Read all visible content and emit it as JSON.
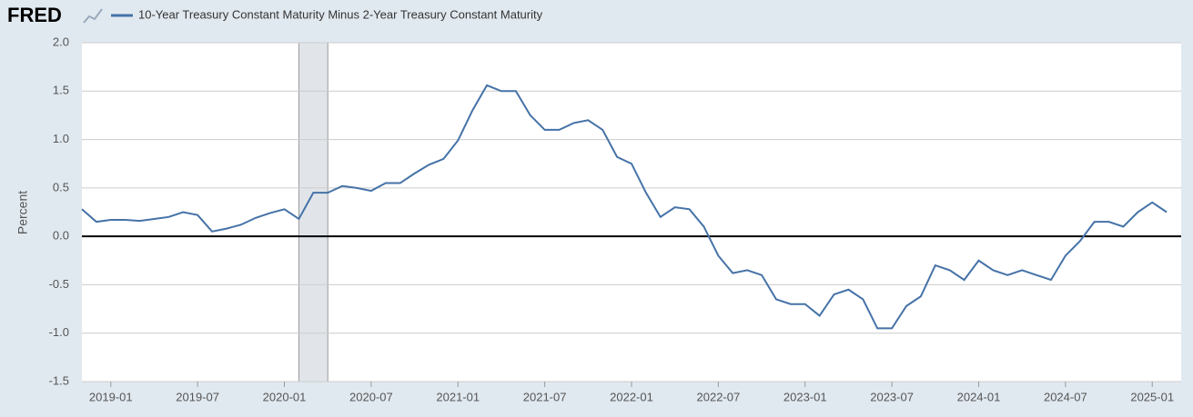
{
  "chart_data": {
    "type": "line",
    "brand": "FRED",
    "y_label": "Percent",
    "xlim": [
      "2018-11",
      "2025-03"
    ],
    "xticks": [
      "2019-01",
      "2019-07",
      "2020-01",
      "2020-07",
      "2021-01",
      "2021-07",
      "2022-01",
      "2022-07",
      "2023-01",
      "2023-07",
      "2024-01",
      "2024-07",
      "2025-01"
    ],
    "ylim": [
      -1.5,
      2.0
    ],
    "yticks": [
      {
        "value": 2.0,
        "label": "2.0"
      },
      {
        "value": 1.5,
        "label": "1.5"
      },
      {
        "value": 1.0,
        "label": "1.0"
      },
      {
        "value": 0.5,
        "label": "0.5"
      },
      {
        "value": 0.0,
        "label": "0.0"
      },
      {
        "value": -0.5,
        "label": "-0.5"
      },
      {
        "value": -1.0,
        "label": "-1.0"
      },
      {
        "value": -1.5,
        "label": "-1.5"
      }
    ],
    "grid": true,
    "recessions": [
      {
        "start": "2020-02",
        "end": "2020-04"
      }
    ],
    "x": [
      "2018-11",
      "2018-12",
      "2019-01",
      "2019-02",
      "2019-03",
      "2019-04",
      "2019-05",
      "2019-06",
      "2019-07",
      "2019-08",
      "2019-09",
      "2019-10",
      "2019-11",
      "2019-12",
      "2020-01",
      "2020-02",
      "2020-03",
      "2020-04",
      "2020-05",
      "2020-06",
      "2020-07",
      "2020-08",
      "2020-09",
      "2020-10",
      "2020-11",
      "2020-12",
      "2021-01",
      "2021-02",
      "2021-03",
      "2021-04",
      "2021-05",
      "2021-06",
      "2021-07",
      "2021-08",
      "2021-09",
      "2021-10",
      "2021-11",
      "2021-12",
      "2022-01",
      "2022-02",
      "2022-03",
      "2022-04",
      "2022-05",
      "2022-06",
      "2022-07",
      "2022-08",
      "2022-09",
      "2022-10",
      "2022-11",
      "2022-12",
      "2023-01",
      "2023-02",
      "2023-03",
      "2023-04",
      "2023-05",
      "2023-06",
      "2023-07",
      "2023-08",
      "2023-09",
      "2023-10",
      "2023-11",
      "2023-12",
      "2024-01",
      "2024-02",
      "2024-03",
      "2024-04",
      "2024-05",
      "2024-06",
      "2024-07",
      "2024-08",
      "2024-09",
      "2024-10",
      "2024-11",
      "2024-12",
      "2025-01",
      "2025-02"
    ],
    "series": [
      {
        "name": "10-Year Treasury Constant Maturity Minus 2-Year Treasury Constant Maturity",
        "color": "#4572a7",
        "values": [
          0.28,
          0.15,
          0.17,
          0.17,
          0.16,
          0.18,
          0.2,
          0.25,
          0.22,
          0.05,
          0.08,
          0.12,
          0.19,
          0.24,
          0.28,
          0.18,
          0.45,
          0.45,
          0.52,
          0.5,
          0.47,
          0.55,
          0.55,
          0.65,
          0.74,
          0.8,
          0.99,
          1.3,
          1.56,
          1.5,
          1.5,
          1.25,
          1.1,
          1.1,
          1.17,
          1.2,
          1.1,
          0.82,
          0.75,
          0.45,
          0.2,
          0.3,
          0.28,
          0.1,
          -0.2,
          -0.38,
          -0.35,
          -0.4,
          -0.65,
          -0.7,
          -0.7,
          -0.82,
          -0.6,
          -0.55,
          -0.65,
          -0.95,
          -0.95,
          -0.72,
          -0.62,
          -0.3,
          -0.35,
          -0.45,
          -0.25,
          -0.35,
          -0.4,
          -0.35,
          -0.4,
          -0.45,
          -0.2,
          -0.05,
          0.15,
          0.15,
          0.1,
          0.25,
          0.35,
          0.25
        ]
      }
    ]
  }
}
